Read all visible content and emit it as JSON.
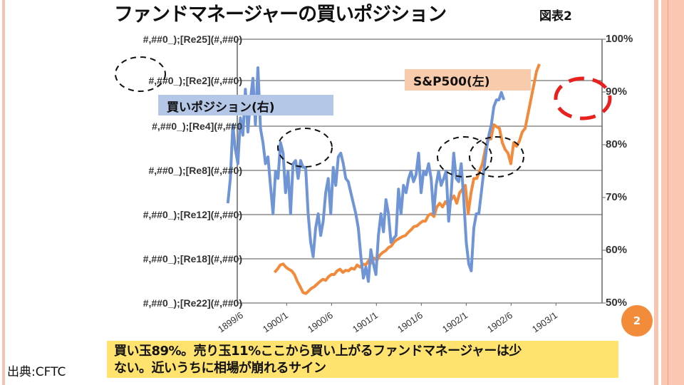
{
  "slide": {
    "title": "ファンドマネージャーの買いポジション",
    "figure_label": "図表2",
    "note_line1": "買い玉89%。売り玉11%ここから買い上がるファンドマネージャーは少",
    "note_line2": "ない。近いうちに相場が崩れるサイン",
    "source": "出典:CFTC",
    "page_number": "2",
    "colors": {
      "blue_series": "#6f95d6",
      "orange_series": "#f28a3c",
      "legend_blue": "#b4c7e7",
      "legend_orange": "#f8cbad",
      "note_bg": "#ffe36e",
      "page_badge": "#f28c3a",
      "highlight_red": "#e8201e"
    }
  },
  "chart_data": {
    "type": "line",
    "title": "ファンドマネージャーの買いポジション",
    "left_tick_labels": [
      "#,##0_);[Re25](#,##0)",
      "#,##0_);[Re2](#,##0)",
      "#,##0_);[Re4](#,##0",
      "#,##0_);[Re8](#,##0)",
      "#,##0_);[Re12](#,##0)",
      "#,##0_);[Re18](#,##0)",
      "#,##0_);[Re22](#,##0)"
    ],
    "right_tick_labels": [
      "100%",
      "90%",
      "80%",
      "70%",
      "60%",
      "50%"
    ],
    "right_ylim": [
      50,
      100
    ],
    "x_tick_labels": [
      "1899/6",
      "1900/1",
      "1900/6",
      "1901/1",
      "1901/6",
      "1902/1",
      "1902/6",
      "1903/1"
    ],
    "xlim": [
      0,
      8
    ],
    "grid": true,
    "series": [
      {
        "name": "買いポジション(右)",
        "axis": "right",
        "x_start": -0.21,
        "x_end": 5.94,
        "values": [
          68.9,
          73.6,
          83.8,
          79.1,
          76.4,
          85.1,
          81.8,
          90.5,
          82.4,
          88.5,
          92.6,
          83.8,
          94.6,
          83.1,
          80.4,
          76.4,
          77.7,
          72.3,
          66.9,
          75,
          73.6,
          80.4,
          78.4,
          70.9,
          75,
          66.9,
          76.4,
          77,
          73.6,
          77,
          75.7,
          75.7,
          66.9,
          61.5,
          58.8,
          64.2,
          66.9,
          62.8,
          65.5,
          70.9,
          73.6,
          66.9,
          75.7,
          72.3,
          77.7,
          78.4,
          76.4,
          73.6,
          73,
          70.9,
          68.9,
          66.9,
          64.2,
          58.8,
          54.7,
          56.8,
          54.1,
          60.1,
          57.4,
          55.4,
          62.8,
          66.9,
          63.5,
          69.6,
          66.9,
          61.5,
          62.2,
          62.8,
          71.6,
          66.9,
          72.3,
          70.9,
          73.6,
          75,
          73,
          74.3,
          78.4,
          70.9,
          75,
          74.3,
          76.4,
          73.6,
          66.9,
          72.3,
          75,
          72.3,
          73.6,
          75,
          65.5,
          70.9,
          78.4,
          73.6,
          73,
          76.4,
          69.6,
          61.5,
          57.4,
          56.1,
          64.2,
          66.9,
          66.9,
          70.9,
          75,
          79.1,
          81.8,
          83.8,
          87.2,
          88.5,
          88.5,
          89.9,
          88.5
        ]
      },
      {
        "name": "S&P500(左)",
        "axis": "left",
        "x_start": 0.83,
        "x_end": 6.73,
        "values": [
          55.8,
          56.4,
          57.2,
          57.4,
          56.8,
          56.4,
          56.1,
          55.4,
          54.1,
          53.1,
          52.0,
          51.8,
          52.3,
          52.8,
          53.1,
          53.6,
          54.1,
          54.5,
          54.3,
          55.0,
          55.4,
          55.4,
          56.1,
          56.4,
          55.8,
          56.2,
          56.1,
          56.6,
          56.4,
          57.2,
          56.8,
          57.4,
          57.2,
          58.0,
          57.6,
          58.5,
          58.1,
          59.1,
          59.6,
          59.9,
          60.5,
          60.8,
          61.6,
          62.0,
          62.3,
          62.6,
          62.8,
          63.4,
          63.9,
          64.5,
          64.6,
          65.1,
          65.5,
          65.5,
          66.6,
          66.9,
          66.4,
          68.2,
          68.9,
          68.2,
          69.2,
          68.5,
          69.6,
          70.3,
          68.9,
          70.9,
          71.6,
          72.3,
          66.9,
          70.9,
          73.6,
          73.6,
          75,
          76.4,
          79.1,
          81.1,
          81.1,
          83.8,
          83.4,
          83.1,
          80.4,
          79.1,
          78.4,
          76.4,
          80.4,
          79.7,
          80.7,
          82.4,
          83.1,
          85.8,
          88.5,
          91.2,
          93.9,
          95.3
        ]
      }
    ]
  }
}
